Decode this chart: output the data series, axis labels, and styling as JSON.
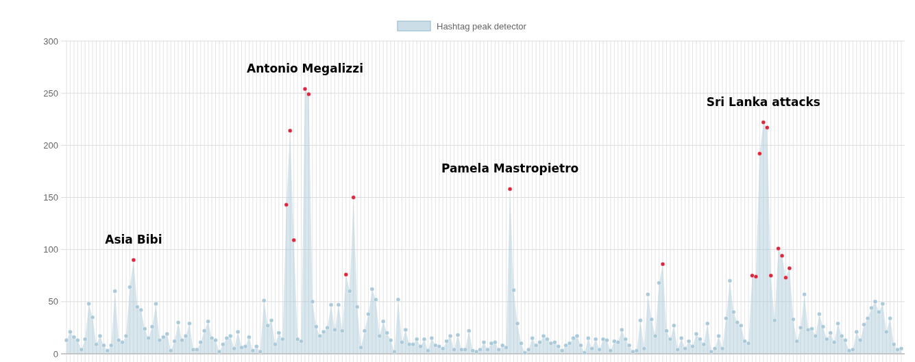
{
  "chart_data": {
    "type": "area",
    "legend": "top",
    "grid": true,
    "marker": "circle",
    "ylim": [
      0,
      300
    ],
    "yticks": [
      0,
      50,
      100,
      150,
      200,
      250,
      300
    ],
    "categories": [
      null,
      null,
      null,
      null,
      null,
      null,
      null,
      null,
      null,
      null,
      null,
      null,
      null,
      null,
      null,
      null,
      null,
      null,
      null,
      null,
      null,
      null,
      null,
      null,
      null,
      null,
      null,
      null,
      null,
      null,
      null,
      null,
      null,
      null,
      null,
      null,
      null,
      null,
      null,
      null,
      null,
      null,
      null,
      null,
      null,
      null,
      null,
      null,
      null,
      null,
      null,
      null,
      null,
      null,
      null,
      null,
      null,
      null,
      null,
      null,
      null,
      null,
      null,
      null,
      null,
      null,
      null,
      null,
      null,
      null,
      null,
      null,
      null,
      null,
      null,
      null,
      null,
      null,
      null,
      null,
      null,
      null,
      null,
      null,
      null,
      null,
      null,
      null,
      null,
      null,
      null,
      null,
      null,
      null,
      null,
      null,
      null,
      null,
      null,
      null,
      null,
      null,
      null,
      null,
      null,
      null,
      null,
      null,
      null,
      null,
      null,
      null,
      null,
      null,
      null,
      null,
      null,
      null,
      null,
      null,
      null,
      null,
      null,
      null,
      null,
      null,
      null,
      null,
      null,
      null,
      null,
      null,
      null,
      null,
      null,
      null,
      null,
      null,
      null,
      null,
      null,
      null,
      null,
      null,
      null,
      null,
      null,
      null,
      null,
      null,
      null,
      null,
      null,
      null,
      null,
      null,
      null,
      null,
      null,
      null,
      null,
      null,
      null,
      null,
      null,
      null,
      null,
      null,
      null,
      null,
      null,
      null,
      null,
      null,
      null,
      null,
      null,
      null,
      null,
      null,
      null,
      null,
      null,
      null,
      null,
      null,
      null,
      null,
      null,
      null,
      null,
      null,
      null,
      null,
      null,
      null,
      null,
      null,
      null,
      null,
      null,
      null,
      null,
      null,
      null,
      null,
      null,
      null,
      null,
      null,
      null,
      null,
      null,
      null,
      null,
      null,
      null,
      null,
      null,
      null,
      null,
      null,
      null,
      null,
      null
    ],
    "series": [
      {
        "name": "Hashtag peak detector",
        "color": "#a9c8d8",
        "values": [
          13,
          21,
          16,
          13,
          4,
          14,
          48,
          35,
          9,
          17,
          8,
          3,
          8,
          60,
          13,
          11,
          17,
          64,
          90,
          45,
          42,
          24,
          15,
          26,
          48,
          13,
          16,
          19,
          3,
          12,
          30,
          13,
          17,
          29,
          4,
          4,
          11,
          22,
          31,
          15,
          13,
          2,
          9,
          15,
          17,
          5,
          21,
          6,
          7,
          16,
          3,
          7,
          2,
          51,
          27,
          32,
          9,
          20,
          14,
          143,
          214,
          109,
          14,
          12,
          254,
          249,
          50,
          26,
          17,
          21,
          25,
          47,
          23,
          47,
          22,
          76,
          60,
          150,
          45,
          6,
          22,
          38,
          62,
          52,
          17,
          31,
          20,
          13,
          2,
          52,
          11,
          23,
          9,
          9,
          14,
          7,
          14,
          3,
          15,
          8,
          7,
          5,
          12,
          17,
          4,
          18,
          4,
          4,
          22,
          3,
          2,
          4,
          11,
          4,
          10,
          11,
          4,
          8,
          6,
          158,
          61,
          29,
          10,
          1,
          4,
          15,
          8,
          11,
          17,
          14,
          10,
          11,
          7,
          3,
          8,
          10,
          15,
          17,
          8,
          1,
          15,
          5,
          14,
          4,
          14,
          13,
          3,
          12,
          11,
          23,
          14,
          8,
          2,
          3,
          32,
          5,
          57,
          33,
          17,
          68,
          86,
          22,
          14,
          27,
          4,
          15,
          5,
          12,
          7,
          19,
          14,
          9,
          29,
          2,
          5,
          17,
          5,
          34,
          70,
          40,
          30,
          27,
          12,
          10,
          75,
          74,
          192,
          222,
          217,
          75,
          32,
          101,
          94,
          73,
          82,
          33,
          12,
          25,
          57,
          23,
          24,
          17,
          38,
          26,
          14,
          20,
          11,
          29,
          17,
          13,
          3,
          4,
          21,
          13,
          28,
          34,
          44,
          50,
          40,
          48,
          21,
          34,
          9,
          4,
          5
        ],
        "colors": [
          "#a9c8d8",
          "#a9c8d8",
          "#a9c8d8",
          "#a9c8d8",
          "#a9c8d8",
          "#a9c8d8",
          "#a9c8d8",
          "#a9c8d8",
          "#a9c8d8",
          "#a9c8d8",
          "#a9c8d8",
          "#a9c8d8",
          "#a9c8d8",
          "#a9c8d8",
          "#a9c8d8",
          "#a9c8d8",
          "#a9c8d8",
          "#a9c8d8",
          "#d7263d",
          "#a9c8d8",
          "#a9c8d8",
          "#a9c8d8",
          "#a9c8d8",
          "#a9c8d8",
          "#a9c8d8",
          "#a9c8d8",
          "#a9c8d8",
          "#a9c8d8",
          "#a9c8d8",
          "#a9c8d8",
          "#a9c8d8",
          "#a9c8d8",
          "#a9c8d8",
          "#a9c8d8",
          "#a9c8d8",
          "#a9c8d8",
          "#a9c8d8",
          "#a9c8d8",
          "#a9c8d8",
          "#a9c8d8",
          "#a9c8d8",
          "#a9c8d8",
          "#a9c8d8",
          "#a9c8d8",
          "#a9c8d8",
          "#a9c8d8",
          "#a9c8d8",
          "#a9c8d8",
          "#a9c8d8",
          "#a9c8d8",
          "#a9c8d8",
          "#a9c8d8",
          "#a9c8d8",
          "#a9c8d8",
          "#a9c8d8",
          "#a9c8d8",
          "#a9c8d8",
          "#a9c8d8",
          "#a9c8d8",
          "#d7263d",
          "#d7263d",
          "#d7263d",
          "#a9c8d8",
          "#a9c8d8",
          "#d7263d",
          "#d7263d",
          "#a9c8d8",
          "#a9c8d8",
          "#a9c8d8",
          "#a9c8d8",
          "#a9c8d8",
          "#a9c8d8",
          "#a9c8d8",
          "#a9c8d8",
          "#a9c8d8",
          "#d7263d",
          "#a9c8d8",
          "#d7263d",
          "#a9c8d8",
          "#a9c8d8",
          "#a9c8d8",
          "#a9c8d8",
          "#a9c8d8",
          "#a9c8d8",
          "#a9c8d8",
          "#a9c8d8",
          "#a9c8d8",
          "#a9c8d8",
          "#a9c8d8",
          "#a9c8d8",
          "#a9c8d8",
          "#a9c8d8",
          "#a9c8d8",
          "#a9c8d8",
          "#a9c8d8",
          "#a9c8d8",
          "#a9c8d8",
          "#a9c8d8",
          "#a9c8d8",
          "#a9c8d8",
          "#a9c8d8",
          "#a9c8d8",
          "#a9c8d8",
          "#a9c8d8",
          "#a9c8d8",
          "#a9c8d8",
          "#a9c8d8",
          "#a9c8d8",
          "#a9c8d8",
          "#a9c8d8",
          "#a9c8d8",
          "#a9c8d8",
          "#a9c8d8",
          "#a9c8d8",
          "#a9c8d8",
          "#a9c8d8",
          "#a9c8d8",
          "#a9c8d8",
          "#a9c8d8",
          "#d7263d",
          "#a9c8d8",
          "#a9c8d8",
          "#a9c8d8",
          "#a9c8d8",
          "#a9c8d8",
          "#a9c8d8",
          "#a9c8d8",
          "#a9c8d8",
          "#a9c8d8",
          "#a9c8d8",
          "#a9c8d8",
          "#a9c8d8",
          "#a9c8d8",
          "#a9c8d8",
          "#a9c8d8",
          "#a9c8d8",
          "#a9c8d8",
          "#a9c8d8",
          "#a9c8d8",
          "#a9c8d8",
          "#a9c8d8",
          "#a9c8d8",
          "#a9c8d8",
          "#a9c8d8",
          "#a9c8d8",
          "#a9c8d8",
          "#a9c8d8",
          "#a9c8d8",
          "#a9c8d8",
          "#a9c8d8",
          "#a9c8d8",
          "#a9c8d8",
          "#a9c8d8",
          "#a9c8d8",
          "#a9c8d8",
          "#a9c8d8",
          "#a9c8d8",
          "#a9c8d8",
          "#a9c8d8",
          "#a9c8d8",
          "#d7263d",
          "#a9c8d8",
          "#a9c8d8",
          "#a9c8d8",
          "#a9c8d8",
          "#a9c8d8",
          "#a9c8d8",
          "#a9c8d8",
          "#a9c8d8",
          "#a9c8d8",
          "#a9c8d8",
          "#a9c8d8",
          "#a9c8d8",
          "#a9c8d8",
          "#a9c8d8",
          "#a9c8d8",
          "#a9c8d8",
          "#a9c8d8",
          "#a9c8d8",
          "#a9c8d8",
          "#a9c8d8",
          "#a9c8d8",
          "#a9c8d8",
          "#a9c8d8",
          "#d7263d",
          "#d7263d",
          "#d7263d",
          "#d7263d",
          "#d7263d",
          "#d7263d",
          "#a9c8d8",
          "#d7263d",
          "#d7263d",
          "#d7263d",
          "#d7263d",
          "#a9c8d8",
          "#a9c8d8",
          "#a9c8d8",
          "#a9c8d8",
          "#a9c8d8",
          "#a9c8d8",
          "#a9c8d8",
          "#a9c8d8",
          "#a9c8d8",
          "#a9c8d8",
          "#a9c8d8",
          "#a9c8d8",
          "#a9c8d8",
          "#a9c8d8",
          "#a9c8d8",
          "#a9c8d8",
          "#a9c8d8",
          "#a9c8d8",
          "#a9c8d8",
          "#a9c8d8",
          "#a9c8d8",
          "#a9c8d8",
          "#a9c8d8",
          "#a9c8d8",
          "#a9c8d8",
          "#a9c8d8",
          "#a9c8d8",
          "#a9c8d8",
          "#a9c8d8",
          "#a9c8d8"
        ]
      }
    ],
    "annotations": [
      {
        "text": "Asia Bibi",
        "y": 90
      },
      {
        "text": "Antonio Megalizzi",
        "y": 254
      },
      {
        "text": "Pamela Mastropietro",
        "y": 158
      },
      {
        "text": "Sri Lanka attacks",
        "y": 222
      }
    ]
  }
}
